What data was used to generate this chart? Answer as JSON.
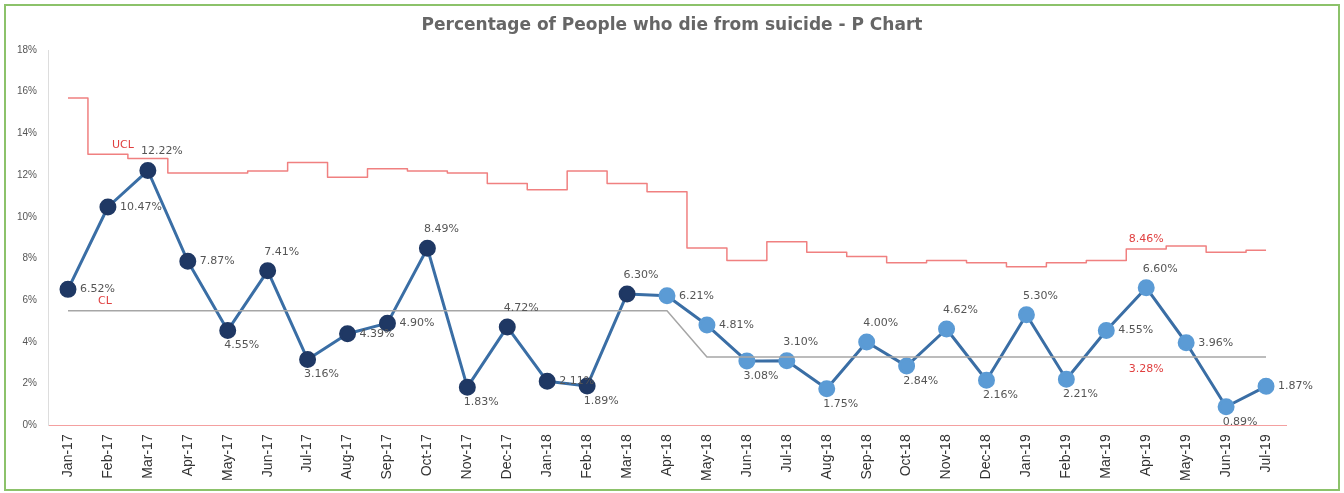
{
  "chart_data": {
    "type": "line",
    "title": "Percentage of People who die from suicide - P Chart",
    "categories": [
      "Jan-17",
      "Feb-17",
      "Mar-17",
      "Apr-17",
      "May-17",
      "Jun-17",
      "Jul-17",
      "Aug-17",
      "Sep-17",
      "Oct-17",
      "Nov-17",
      "Dec-17",
      "Jan-18",
      "Feb-18",
      "Mar-18",
      "Apr-18",
      "May-18",
      "Jun-18",
      "Jul-18",
      "Aug-18",
      "Sep-18",
      "Oct-18",
      "Nov-18",
      "Dec-18",
      "Jan-19",
      "Feb-19",
      "Mar-19",
      "Apr-19",
      "May-19",
      "Jun-19",
      "Jul-19"
    ],
    "series": [
      {
        "type": "step",
        "color": "#f08080",
        "values": [
          15.7,
          13.0,
          12.8,
          12.1,
          12.1,
          12.2,
          12.6,
          11.9,
          12.3,
          12.2,
          12.1,
          11.6,
          11.3,
          12.2,
          11.6,
          11.2,
          8.5,
          7.9,
          8.8,
          8.3,
          8.1,
          7.8,
          7.9,
          7.8,
          7.6,
          7.8,
          7.9,
          8.46,
          8.6,
          8.3,
          8.4
        ],
        "value_labels": [
          null,
          null,
          null,
          null,
          null,
          null,
          null,
          null,
          null,
          null,
          null,
          null,
          null,
          null,
          null,
          null,
          null,
          null,
          null,
          null,
          null,
          null,
          null,
          null,
          null,
          null,
          null,
          "8.46%",
          null,
          null,
          null
        ],
        "marker": "none"
      },
      {
        "type": "line",
        "color": "#a6a6a6",
        "values": [
          5.5,
          5.5,
          5.5,
          5.5,
          5.5,
          5.5,
          5.5,
          5.5,
          5.5,
          5.5,
          5.5,
          5.5,
          5.5,
          5.5,
          5.5,
          5.5,
          3.28,
          3.28,
          3.28,
          3.28,
          3.28,
          3.28,
          3.28,
          3.28,
          3.28,
          3.28,
          3.28,
          3.28,
          3.28,
          3.28,
          3.28
        ],
        "value_labels": [
          null,
          null,
          null,
          null,
          null,
          null,
          null,
          null,
          null,
          null,
          null,
          null,
          null,
          null,
          null,
          null,
          null,
          null,
          null,
          null,
          null,
          null,
          null,
          null,
          null,
          null,
          null,
          "3.28%",
          null,
          null,
          null
        ],
        "marker": "none"
      },
      {
        "type": "line",
        "color": "#3a6ea5",
        "marker": "circle",
        "values": [
          6.52,
          10.47,
          12.22,
          7.87,
          4.55,
          7.41,
          3.16,
          4.39,
          4.9,
          8.49,
          1.83,
          4.72,
          2.11,
          1.89,
          6.3,
          6.21,
          4.81,
          3.08,
          3.1,
          1.75,
          4.0,
          2.84,
          4.62,
          2.16,
          5.3,
          2.21,
          4.55,
          6.6,
          3.96,
          0.89,
          1.87
        ],
        "colors": [
          "#1f3864",
          "#1f3864",
          "#1f3864",
          "#1f3864",
          "#1f3864",
          "#1f3864",
          "#1f3864",
          "#1f3864",
          "#1f3864",
          "#1f3864",
          "#1f3864",
          "#1f3864",
          "#1f3864",
          "#1f3864",
          "#1f3864",
          "#5b9bd5",
          "#5b9bd5",
          "#5b9bd5",
          "#5b9bd5",
          "#5b9bd5",
          "#5b9bd5",
          "#5b9bd5",
          "#5b9bd5",
          "#5b9bd5",
          "#5b9bd5",
          "#5b9bd5",
          "#5b9bd5",
          "#5b9bd5",
          "#5b9bd5",
          "#5b9bd5",
          "#5b9bd5"
        ],
        "value_labels": [
          "6.52%",
          "10.47%",
          "12.22%",
          "7.87%",
          "4.55%",
          "7.41%",
          "3.16%",
          "4.39%",
          "4.90%",
          "8.49%",
          "1.83%",
          "4.72%",
          "2.11%",
          "1.89%",
          "6.30%",
          "6.21%",
          "4.81%",
          "3.08%",
          "3.10%",
          "1.75%",
          "4.00%",
          "2.84%",
          "4.62%",
          "2.16%",
          "5.30%",
          "2.21%",
          "4.55%",
          "6.60%",
          "3.96%",
          "0.89%",
          "1.87%"
        ]
      }
    ],
    "ylim": [
      0,
      18
    ],
    "yticks": [
      {
        "value": 0,
        "label": "0%"
      },
      {
        "value": 2,
        "label": "2%"
      },
      {
        "value": 4,
        "label": "4%"
      },
      {
        "value": 6,
        "label": "6%"
      },
      {
        "value": 8,
        "label": "8%"
      },
      {
        "value": 10,
        "label": "10%"
      },
      {
        "value": 12,
        "label": "12%"
      },
      {
        "value": 14,
        "label": "14%"
      },
      {
        "value": 16,
        "label": "16%"
      },
      {
        "value": 18,
        "label": "18%"
      }
    ],
    "grid": false,
    "legend": false,
    "annotations": [
      {
        "text": "UCL",
        "x": "Feb-17",
        "y": 13.0
      },
      {
        "text": "CL",
        "x": "Jan-17",
        "y": 5.5
      }
    ]
  }
}
